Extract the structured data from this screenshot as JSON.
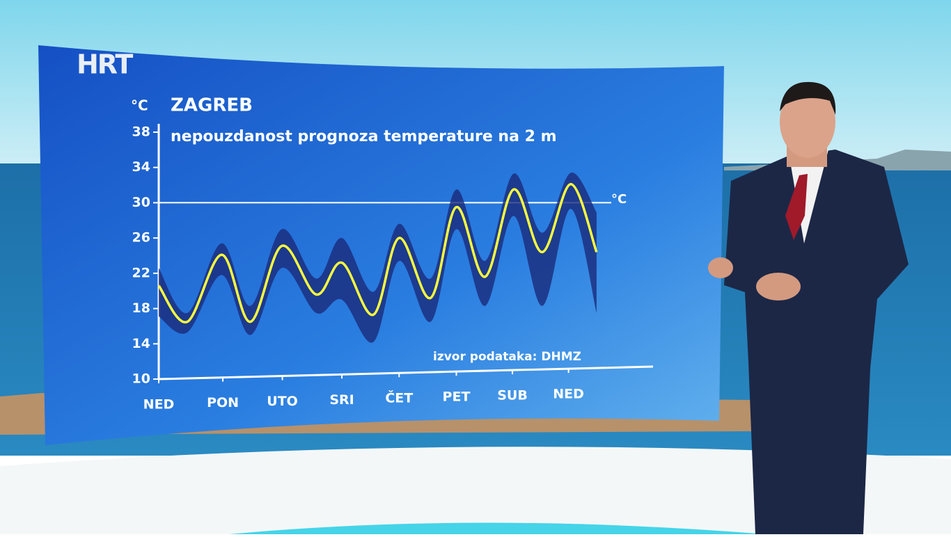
{
  "logo": "HRT",
  "chart_data": {
    "type": "line",
    "title": "ZAGREB",
    "subtitle": "nepouzdanost prognoza temperature na 2 m",
    "y_unit": "°C",
    "ref_line_label": "°C",
    "source": "izvor podataka: DHMZ",
    "x": [
      0,
      0.5,
      1.1,
      1.6,
      2.15,
      2.75,
      3.2,
      3.75,
      4.2,
      4.75,
      5.2,
      5.7,
      6.2,
      6.7,
      7.2,
      7.65
    ],
    "values": [
      20.6,
      16.5,
      24.1,
      16.5,
      25.1,
      19.6,
      23.2,
      17.3,
      26,
      19.2,
      29.5,
      21.6,
      31.5,
      24.4,
      32.1,
      24.4
    ],
    "band_low": [
      17.1,
      15.3,
      21.8,
      15,
      22.6,
      17.5,
      19,
      14.2,
      23.4,
      16.5,
      27,
      18.3,
      28.5,
      18.3,
      29.3,
      17.5
    ],
    "band_high": [
      22.6,
      17.5,
      25.4,
      18.3,
      27,
      21.4,
      26,
      19.9,
      27.6,
      21.4,
      31.5,
      23.4,
      33.3,
      26.6,
      33.4,
      28.9
    ],
    "color": "#ffff3c",
    "band_color": "#1a2a7a",
    "ref_line": 30,
    "xlim": [
      0,
      8.6
    ],
    "xticks": [
      {
        "value": 0,
        "label": "NED"
      },
      {
        "value": 1.12,
        "label": "PON"
      },
      {
        "value": 2.16,
        "label": "UTO"
      },
      {
        "value": 3.2,
        "label": "SRI"
      },
      {
        "value": 4.2,
        "label": "ČET"
      },
      {
        "value": 5.2,
        "label": "PET"
      },
      {
        "value": 6.18,
        "label": "SUB"
      },
      {
        "value": 7.16,
        "label": "NED"
      }
    ],
    "ylim": [
      10,
      38
    ],
    "yticks": [
      10,
      14,
      18,
      22,
      26,
      30,
      34,
      38
    ]
  }
}
